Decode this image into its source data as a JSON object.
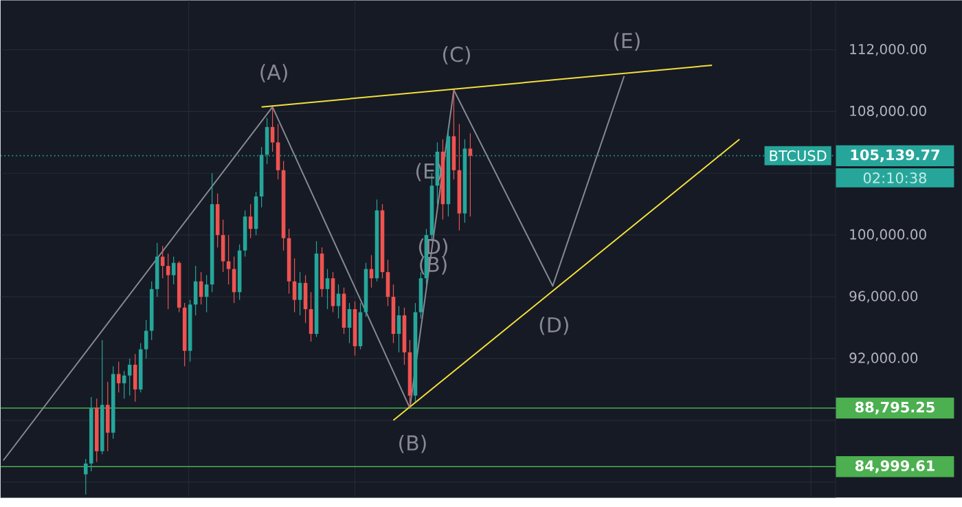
{
  "chart_data": {
    "type": "candlestick",
    "categories": [
      null,
      null,
      null,
      null,
      null,
      null,
      null,
      null,
      null,
      null,
      null,
      null,
      null,
      null,
      null,
      null,
      null,
      null,
      null,
      null,
      null,
      null,
      null,
      null,
      null,
      null,
      null,
      null,
      null,
      null,
      null,
      null,
      null,
      null,
      null,
      null,
      null,
      null,
      null,
      null,
      null,
      null,
      null,
      null,
      null,
      null,
      null,
      null,
      null,
      null,
      null,
      null,
      null,
      null,
      null,
      null,
      null,
      null,
      null,
      null,
      null,
      null,
      null,
      null,
      null,
      null,
      null,
      null,
      null,
      null,
      null,
      null,
      null,
      null,
      null,
      null,
      null,
      null,
      null,
      null,
      null,
      null,
      null,
      null,
      null,
      null,
      null,
      null,
      null,
      null,
      null,
      null,
      null,
      null,
      null,
      null,
      null,
      null,
      null,
      null,
      null,
      null,
      null,
      null,
      null,
      null,
      null,
      null,
      null,
      null,
      null,
      null,
      null,
      null,
      null,
      null,
      null,
      null,
      null,
      null,
      null,
      null,
      null,
      null,
      null,
      null,
      null,
      null,
      null,
      null,
      null,
      null,
      null,
      null,
      null,
      null,
      null,
      null,
      null,
      null,
      null,
      null,
      null,
      null,
      null,
      null,
      null,
      null,
      null,
      null,
      null,
      null
    ],
    "ohlc": [
      null,
      null,
      null,
      null,
      null,
      null,
      null,
      null,
      null,
      null,
      null,
      null,
      null,
      null,
      null,
      [
        84500,
        85500,
        83200,
        85200
      ],
      [
        85200,
        89500,
        84700,
        88800
      ],
      [
        88800,
        89400,
        85300,
        86000
      ],
      [
        86000,
        93200,
        85800,
        89000
      ],
      [
        89000,
        90500,
        86000,
        87200
      ],
      [
        87200,
        91500,
        86800,
        91000
      ],
      [
        91000,
        91800,
        89800,
        90400
      ],
      [
        90400,
        91200,
        89400,
        90900
      ],
      [
        90900,
        92000,
        89600,
        91600
      ],
      [
        91600,
        92300,
        89200,
        90000
      ],
      [
        90000,
        93000,
        89800,
        92600
      ],
      [
        92600,
        94500,
        92000,
        93800
      ],
      [
        93800,
        97000,
        93200,
        96500
      ],
      [
        96500,
        99500,
        96000,
        98600
      ],
      [
        98600,
        99300,
        97200,
        98000
      ],
      [
        98000,
        98800,
        95200,
        97400
      ],
      [
        97400,
        98600,
        96800,
        98200
      ],
      [
        98200,
        98300,
        95000,
        95300
      ],
      [
        95300,
        95600,
        91500,
        92500
      ],
      [
        92500,
        95800,
        91800,
        95500
      ],
      [
        95500,
        98000,
        94800,
        97000
      ],
      [
        97000,
        97600,
        95500,
        96000
      ],
      [
        96000,
        97400,
        95000,
        96800
      ],
      [
        96800,
        104000,
        96300,
        102000
      ],
      [
        102000,
        102700,
        99200,
        100000
      ],
      [
        100000,
        101000,
        97600,
        98300
      ],
      [
        98300,
        100000,
        96800,
        97800
      ],
      [
        97800,
        98600,
        95600,
        96300
      ],
      [
        96300,
        99400,
        95800,
        99000
      ],
      [
        99000,
        101600,
        98600,
        101200
      ],
      [
        101200,
        102000,
        99800,
        100400
      ],
      [
        100400,
        102800,
        100000,
        102500
      ],
      [
        102500,
        105700,
        101800,
        105200
      ],
      [
        105200,
        107600,
        104600,
        107000
      ],
      [
        107000,
        108300,
        105400,
        106000
      ],
      [
        106000,
        107200,
        103600,
        104200
      ],
      [
        104200,
        104800,
        99000,
        99800
      ],
      [
        99800,
        100400,
        96200,
        97000
      ],
      [
        97000,
        98500,
        95000,
        95800
      ],
      [
        95800,
        97600,
        94800,
        96900
      ],
      [
        96900,
        97400,
        94300,
        95200
      ],
      [
        95200,
        96300,
        93100,
        93600
      ],
      [
        93600,
        99600,
        93400,
        98800
      ],
      [
        98800,
        99200,
        96000,
        96500
      ],
      [
        96500,
        97800,
        95200,
        97200
      ],
      [
        97200,
        97600,
        95000,
        95400
      ],
      [
        95400,
        96800,
        94600,
        96200
      ],
      [
        96200,
        96600,
        93600,
        94000
      ],
      [
        94000,
        95600,
        93000,
        95200
      ],
      [
        95200,
        95700,
        92200,
        92800
      ],
      [
        92800,
        95600,
        92600,
        95000
      ],
      [
        95000,
        98200,
        94700,
        97800
      ],
      [
        97800,
        98700,
        96600,
        97200
      ],
      [
        97200,
        102300,
        97000,
        101600
      ],
      [
        101600,
        102000,
        97200,
        97600
      ],
      [
        97600,
        98400,
        95400,
        96000
      ],
      [
        96000,
        96800,
        93000,
        93600
      ],
      [
        93600,
        95400,
        92400,
        94800
      ],
      [
        94800,
        95300,
        91600,
        92400
      ],
      [
        92400,
        93200,
        88800,
        89600
      ],
      [
        89600,
        95600,
        89200,
        95000
      ],
      [
        95000,
        97600,
        94600,
        97200
      ],
      [
        97200,
        100400,
        96800,
        100000
      ],
      [
        100000,
        104000,
        99600,
        103200
      ],
      [
        103200,
        106000,
        102000,
        105400
      ],
      [
        105400,
        106200,
        101000,
        102000
      ],
      [
        102000,
        107000,
        101200,
        106400
      ],
      [
        106400,
        109400,
        103600,
        104200
      ],
      [
        104200,
        107200,
        100300,
        101400
      ],
      [
        101400,
        106200,
        100800,
        105600
      ],
      [
        105600,
        106600,
        101200,
        105139.77
      ],
      null,
      null,
      null,
      null,
      null,
      null,
      null,
      null,
      null,
      null,
      null,
      null,
      null,
      null,
      null,
      null,
      null,
      null,
      null,
      null,
      null,
      null,
      null,
      null,
      null,
      null,
      null,
      null,
      null,
      null,
      null,
      null,
      null,
      null,
      null,
      null,
      null,
      null,
      null,
      null,
      null,
      null,
      null,
      null,
      null,
      null,
      null,
      null,
      null,
      null,
      null,
      null,
      null,
      null,
      null,
      null,
      null,
      null,
      null,
      null,
      null,
      null,
      null,
      null,
      null,
      null
    ],
    "series": [
      {
        "type": "line",
        "color": "#868993",
        "values": [
          85400,
          null,
          null,
          null,
          null,
          null,
          null,
          null,
          null,
          null,
          null,
          null,
          null,
          null,
          null,
          null,
          null,
          null,
          null,
          null,
          null,
          null,
          null,
          null,
          null,
          null,
          null,
          null,
          null,
          null,
          null,
          null,
          null,
          null,
          null,
          null,
          null,
          null,
          null,
          null,
          null,
          null,
          null,
          null,
          null,
          null,
          null,
          null,
          null,
          108300,
          null,
          null,
          null,
          null,
          null,
          null,
          null,
          null,
          null,
          null,
          null,
          null,
          null,
          null,
          null,
          null,
          null,
          null,
          null,
          null,
          null,
          null,
          null,
          null,
          88800,
          null,
          null,
          null,
          null,
          null,
          null,
          null,
          109400,
          null,
          null,
          null,
          null,
          null,
          null,
          null,
          null,
          null,
          null,
          null,
          null,
          null,
          null,
          null,
          null,
          null,
          96700,
          null,
          null,
          null,
          null,
          null,
          null,
          null,
          null,
          null,
          null,
          null,
          null,
          110300,
          null,
          null,
          null,
          null,
          null,
          null,
          null,
          null,
          null,
          null,
          null,
          null,
          null,
          null,
          null,
          null,
          null,
          null,
          null,
          null,
          null,
          null,
          null,
          null,
          null,
          null,
          null,
          null,
          null,
          null,
          null,
          null,
          null,
          null,
          null,
          null,
          null,
          null
        ]
      },
      {
        "type": "line",
        "color": "#f2e03b",
        "values": [
          null,
          null,
          null,
          null,
          null,
          null,
          null,
          null,
          null,
          null,
          null,
          null,
          null,
          null,
          null,
          null,
          null,
          null,
          null,
          null,
          null,
          null,
          null,
          null,
          null,
          null,
          null,
          null,
          null,
          null,
          null,
          null,
          null,
          null,
          null,
          null,
          null,
          null,
          null,
          null,
          null,
          null,
          null,
          null,
          null,
          null,
          null,
          108300,
          null,
          null,
          null,
          null,
          null,
          null,
          null,
          null,
          null,
          null,
          null,
          null,
          null,
          null,
          null,
          null,
          null,
          null,
          null,
          null,
          null,
          null,
          null,
          null,
          null,
          null,
          null,
          null,
          null,
          null,
          null,
          null,
          null,
          null,
          null,
          null,
          null,
          null,
          null,
          null,
          null,
          null,
          null,
          null,
          null,
          null,
          null,
          null,
          null,
          null,
          null,
          null,
          null,
          null,
          null,
          null,
          null,
          null,
          null,
          null,
          null,
          null,
          null,
          null,
          null,
          null,
          null,
          null,
          null,
          null,
          null,
          null,
          null,
          null,
          null,
          null,
          null,
          null,
          null,
          null,
          null,
          111000,
          null,
          null,
          null,
          null,
          null,
          null,
          null,
          null,
          null,
          null,
          null,
          null,
          null,
          null,
          null,
          null,
          null,
          null,
          null,
          null,
          null,
          null
        ]
      },
      {
        "type": "line",
        "color": "#f2e03b",
        "values": [
          null,
          null,
          null,
          null,
          null,
          null,
          null,
          null,
          null,
          null,
          null,
          null,
          null,
          null,
          null,
          null,
          null,
          null,
          null,
          null,
          null,
          null,
          null,
          null,
          null,
          null,
          null,
          null,
          null,
          null,
          null,
          null,
          null,
          null,
          null,
          null,
          null,
          null,
          null,
          null,
          null,
          null,
          null,
          null,
          null,
          null,
          null,
          null,
          null,
          null,
          null,
          null,
          null,
          null,
          null,
          null,
          null,
          null,
          null,
          null,
          null,
          null,
          null,
          null,
          null,
          null,
          null,
          null,
          null,
          null,
          null,
          88000,
          null,
          null,
          null,
          null,
          null,
          null,
          null,
          null,
          null,
          null,
          null,
          null,
          null,
          null,
          null,
          null,
          null,
          null,
          null,
          null,
          null,
          null,
          null,
          null,
          null,
          null,
          null,
          null,
          null,
          null,
          null,
          null,
          null,
          null,
          null,
          null,
          null,
          null,
          null,
          null,
          null,
          null,
          null,
          null,
          null,
          null,
          null,
          null,
          null,
          null,
          null,
          null,
          null,
          null,
          null,
          null,
          null,
          null,
          null,
          null,
          null,
          null,
          106200,
          null,
          null,
          null,
          null,
          null,
          null,
          null,
          null,
          null,
          null,
          null,
          null,
          null,
          null,
          null,
          null,
          null
        ]
      }
    ],
    "ylim": [
      83000,
      115200
    ],
    "yticks": [
      {
        "value": 84000,
        "label": null
      },
      {
        "value": 88000,
        "label": null
      },
      {
        "value": 92000,
        "label": "92,000.00"
      },
      {
        "value": 96000,
        "label": "96,000.00"
      },
      {
        "value": 100000,
        "label": "100,000.00"
      },
      {
        "value": 104000,
        "label": null
      },
      {
        "value": 108000,
        "label": "108,000.00"
      },
      {
        "value": 112000,
        "label": "112,000.00"
      }
    ],
    "tick_labels": "y",
    "grid": true,
    "ref_lines": [
      {
        "axis": "y",
        "value": 105139.77,
        "label": "105,139.77",
        "color": "#26a69a",
        "line_style": "dotted"
      },
      {
        "axis": "y",
        "value": 88795.25,
        "label": "88,795.25",
        "color": "#4caf50",
        "line_style": "solid"
      },
      {
        "axis": "y",
        "value": 84999.61,
        "label": "84,999.61",
        "color": "#4caf50",
        "line_style": "solid"
      }
    ],
    "annotations": [
      "(A)",
      "(B)",
      "(C)",
      "(D)",
      "(E)",
      "(E)",
      "(D)",
      "(B)",
      "BTCUSD",
      "02:10:38"
    ]
  }
}
